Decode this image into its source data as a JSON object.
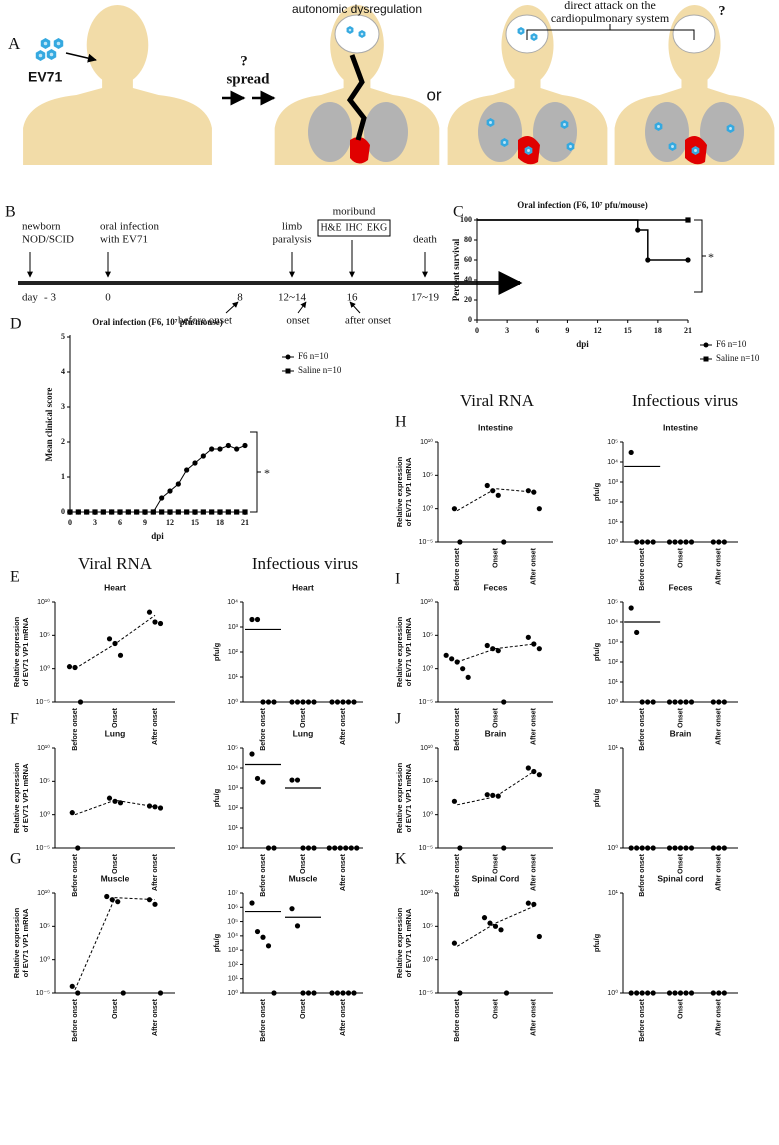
{
  "panel_a": {
    "label": "A",
    "virus": "EV71",
    "question_1": "?",
    "spread": "spread",
    "autonomic": "autonomic  dysregulation",
    "or": "or",
    "direct_attack": [
      "direct attack on the",
      "cardiopulmonary system"
    ],
    "question_2": "?"
  },
  "panel_b": {
    "label": "B",
    "events": [
      [
        "newborn",
        "NOD/SCID"
      ],
      [
        "oral infection",
        "with EV71"
      ],
      [
        "limb",
        "paralysis"
      ],
      [
        "death"
      ]
    ],
    "moribund": "moribund",
    "assays": [
      "H&E",
      "IHC",
      "EKG"
    ],
    "day": "day",
    "days": [
      "- 3",
      "0",
      "8",
      "12~14",
      "16",
      "17~19"
    ],
    "stages": [
      "before onset",
      "onset",
      "after onset"
    ]
  },
  "panel_labels": [
    "C",
    "D",
    "E",
    "F",
    "G",
    "H",
    "I",
    "J",
    "K"
  ],
  "column_headers": {
    "left": [
      "Viral RNA",
      "Infectious virus"
    ],
    "right": [
      "Viral RNA",
      "Infectious virus"
    ]
  },
  "chart_data": [
    {
      "type": "step",
      "title": "Oral infection (F6, 10⁷ pfu/mouse)",
      "xlabel": "dpi",
      "ylabel": "Percent survival",
      "annotation": "*",
      "xlim": [
        0,
        21
      ],
      "xticks": [
        0,
        3,
        6,
        9,
        12,
        15,
        18,
        21
      ],
      "ylim": [
        0,
        100
      ],
      "yticks": [
        0,
        20,
        40,
        60,
        80,
        100
      ],
      "series": [
        {
          "name": "F6  n=10",
          "marker": "circle",
          "color": "#000",
          "x": [
            0,
            16,
            17,
            21
          ],
          "values": [
            100,
            90,
            60,
            60
          ]
        },
        {
          "name": "Saline  n=10",
          "marker": "square",
          "color": "#000",
          "x": [
            0,
            21
          ],
          "values": [
            100,
            100
          ]
        }
      ]
    },
    {
      "type": "line",
      "title": "Oral infection (F6, 10⁷ pfu/mouse)",
      "xlabel": "dpi",
      "ylabel": "Mean clinical score",
      "annotation": "*",
      "xlim": [
        0,
        21
      ],
      "xticks": [
        0,
        3,
        6,
        9,
        12,
        15,
        18,
        21
      ],
      "ylim": [
        0,
        5
      ],
      "yticks": [
        0,
        1,
        2,
        3,
        4,
        5
      ],
      "x": [
        0,
        1,
        2,
        3,
        4,
        5,
        6,
        7,
        8,
        9,
        10,
        11,
        12,
        13,
        14,
        15,
        16,
        17,
        18,
        19,
        20,
        21
      ],
      "series": [
        {
          "name": "F6  n=10",
          "marker": "circle",
          "color": "#000",
          "values": [
            0,
            0,
            0,
            0,
            0,
            0,
            0,
            0,
            0,
            0,
            0,
            0.4,
            0.6,
            0.8,
            1.2,
            1.4,
            1.6,
            1.8,
            1.8,
            1.9,
            1.8,
            1.9
          ]
        },
        {
          "name": "Saline  n=10",
          "marker": "square",
          "color": "#000",
          "values": [
            0,
            0,
            0,
            0,
            0,
            0,
            0,
            0,
            0,
            0,
            0,
            0,
            0,
            0,
            0,
            0,
            0,
            0,
            0,
            0,
            0,
            0
          ]
        }
      ]
    },
    {
      "type": "dot",
      "title": "Heart",
      "ylabel": [
        "Relative expression",
        "of EV71 VP1 mRNA"
      ],
      "log_scale": true,
      "mean_mark": "line",
      "categories": [
        "Before onset",
        "Onset",
        "After onset"
      ],
      "ylim": [
        1e-05,
        10000000000.0
      ],
      "yticks": [
        {
          "value": 10000000000.0,
          "label": "10¹⁰"
        },
        {
          "value": 100000.0,
          "label": "10⁵"
        },
        {
          "value": 1,
          "label": "10⁰"
        },
        {
          "value": 1e-05,
          "label": "10⁻⁵"
        }
      ],
      "groups": [
        [
          2,
          1.5,
          1e-05
        ],
        [
          30000,
          6000,
          100
        ],
        [
          300000000,
          10000000,
          6000000
        ]
      ],
      "means": [
        1,
        5000,
        100000000
      ]
    },
    {
      "type": "dot",
      "title": "Heart",
      "ylabel": "pfu/g",
      "log_scale": true,
      "mean_mark": "bar",
      "categories": [
        "Before onset",
        "Onset",
        "After onset"
      ],
      "ylim": [
        1,
        10000
      ],
      "yticks": [
        {
          "value": 1,
          "label": "10⁰"
        },
        {
          "value": 10,
          "label": "10¹"
        },
        {
          "value": 100,
          "label": "10²"
        },
        {
          "value": 1000,
          "label": "10³"
        },
        {
          "value": 10000,
          "label": "10⁴"
        }
      ],
      "groups": [
        [
          2000,
          2000,
          1,
          1,
          1
        ],
        [
          1,
          1,
          1,
          1,
          1
        ],
        [
          1,
          1,
          1,
          1,
          1
        ]
      ],
      "means": [
        800,
        null,
        null
      ]
    },
    {
      "type": "dot",
      "title": "Lung",
      "ylabel": [
        "Relative expression",
        "of EV71 VP1 mRNA"
      ],
      "log_scale": true,
      "mean_mark": "line",
      "categories": [
        "Before onset",
        "Onset",
        "After onset"
      ],
      "ylim": [
        1e-05,
        10000000000.0
      ],
      "yticks": [
        {
          "value": 10000000000.0,
          "label": "10¹⁰"
        },
        {
          "value": 100000.0,
          "label": "10⁵"
        },
        {
          "value": 1,
          "label": "10⁰"
        },
        {
          "value": 1e-05,
          "label": "10⁻⁵"
        }
      ],
      "groups": [
        [
          2,
          1e-05
        ],
        [
          300,
          100,
          60
        ],
        [
          20,
          15,
          10
        ]
      ],
      "means": [
        1,
        150,
        15
      ]
    },
    {
      "type": "dot",
      "title": "Lung",
      "ylabel": "pfu/g",
      "log_scale": true,
      "mean_mark": "bar",
      "categories": [
        "Before onset",
        "Onset",
        "After onset"
      ],
      "ylim": [
        1,
        100000
      ],
      "yticks": [
        {
          "value": 1,
          "label": "10⁰"
        },
        {
          "value": 10,
          "label": "10¹"
        },
        {
          "value": 100,
          "label": "10²"
        },
        {
          "value": 1000,
          "label": "10³"
        },
        {
          "value": 10000,
          "label": "10⁴"
        },
        {
          "value": 100000,
          "label": "10⁵"
        }
      ],
      "groups": [
        [
          50000,
          3000,
          2000,
          1,
          1
        ],
        [
          2500,
          2500,
          1,
          1,
          1
        ],
        [
          1,
          1,
          1,
          1,
          1,
          1
        ]
      ],
      "means": [
        15000,
        1000,
        null
      ]
    },
    {
      "type": "dot",
      "title": "Muscle",
      "ylabel": [
        "Relative expression",
        "of EV71 VP1 mRNA"
      ],
      "log_scale": true,
      "mean_mark": "line",
      "categories": [
        "Before onset",
        "Onset",
        "After onset"
      ],
      "ylim": [
        1e-05,
        10000000000.0
      ],
      "yticks": [
        {
          "value": 10000000000.0,
          "label": "10¹⁰"
        },
        {
          "value": 100000.0,
          "label": "10⁵"
        },
        {
          "value": 1,
          "label": "10⁰"
        },
        {
          "value": 1e-05,
          "label": "10⁻⁵"
        }
      ],
      "groups": [
        [
          0.0001,
          1e-05
        ],
        [
          3000000000,
          1000000000,
          500000000,
          1e-05
        ],
        [
          1000000000,
          200000000,
          1e-05
        ]
      ],
      "means": [
        3e-05,
        2000000000,
        1000000000
      ]
    },
    {
      "type": "dot",
      "title": "Muscle",
      "ylabel": "pfu/g",
      "log_scale": true,
      "mean_mark": "bar",
      "categories": [
        "Before onset",
        "Onset",
        "After onset"
      ],
      "ylim": [
        1,
        10000000
      ],
      "yticks": [
        {
          "value": 1,
          "label": "10⁰"
        },
        {
          "value": 10,
          "label": "10¹"
        },
        {
          "value": 100,
          "label": "10²"
        },
        {
          "value": 1000,
          "label": "10³"
        },
        {
          "value": 10000,
          "label": "10⁴"
        },
        {
          "value": 100000,
          "label": "10⁵"
        },
        {
          "value": 1000000,
          "label": "10⁶"
        },
        {
          "value": 10000000,
          "label": "10⁷"
        }
      ],
      "groups": [
        [
          2000000,
          20000,
          8000,
          2000,
          1
        ],
        [
          800000,
          50000,
          1,
          1,
          1
        ],
        [
          1,
          1,
          1,
          1,
          1
        ]
      ],
      "means": [
        500000,
        200000,
        null
      ]
    },
    {
      "type": "dot",
      "title": "Intestine",
      "ylabel": [
        "Relative expression",
        "of EV71 VP1 mRNA"
      ],
      "log_scale": true,
      "mean_mark": "line",
      "categories": [
        "Before onset",
        "Onset",
        "After onset"
      ],
      "ylim": [
        1e-05,
        10000000000.0
      ],
      "yticks": [
        {
          "value": 10000000000.0,
          "label": "10¹⁰"
        },
        {
          "value": 100000.0,
          "label": "10⁵"
        },
        {
          "value": 1,
          "label": "10⁰"
        },
        {
          "value": 1e-05,
          "label": "10⁻⁵"
        }
      ],
      "groups": [
        [
          1,
          1e-05
        ],
        [
          3000,
          500,
          100,
          1e-05
        ],
        [
          500,
          300,
          1
        ]
      ],
      "means": [
        0.5,
        1000,
        300
      ]
    },
    {
      "type": "dot",
      "title": "Intestine",
      "ylabel": "pfu/g",
      "log_scale": true,
      "mean_mark": "bar",
      "categories": [
        "Before onset",
        "Onset",
        "After onset"
      ],
      "ylim": [
        1,
        100000
      ],
      "yticks": [
        {
          "value": 1,
          "label": "10⁰"
        },
        {
          "value": 10,
          "label": "10¹"
        },
        {
          "value": 100,
          "label": "10²"
        },
        {
          "value": 1000,
          "label": "10³"
        },
        {
          "value": 10000,
          "label": "10⁴"
        },
        {
          "value": 100000,
          "label": "10⁵"
        }
      ],
      "groups": [
        [
          30000,
          1,
          1,
          1,
          1
        ],
        [
          1,
          1,
          1,
          1,
          1
        ],
        [
          1,
          1,
          1
        ]
      ],
      "means": [
        6000,
        null,
        null
      ]
    },
    {
      "type": "dot",
      "title": "Feces",
      "ylabel": [
        "Relative expression",
        "of EV71 VP1 mRNA"
      ],
      "log_scale": true,
      "mean_mark": "line",
      "categories": [
        "Before onset",
        "Onset",
        "After onset"
      ],
      "ylim": [
        1e-05,
        10000000000.0
      ],
      "yticks": [
        {
          "value": 10000000000.0,
          "label": "10¹⁰"
        },
        {
          "value": 100000.0,
          "label": "10⁵"
        },
        {
          "value": 1,
          "label": "10⁰"
        },
        {
          "value": 1e-05,
          "label": "10⁻⁵"
        }
      ],
      "groups": [
        [
          100,
          30,
          10,
          1,
          0.05
        ],
        [
          3000,
          1000,
          500,
          1e-05
        ],
        [
          50000,
          5000,
          1000
        ]
      ],
      "means": [
        10,
        1000,
        5000
      ]
    },
    {
      "type": "dot",
      "title": "Feces",
      "ylabel": "pfu/g",
      "log_scale": true,
      "mean_mark": "bar",
      "categories": [
        "Before onset",
        "Onset",
        "After onset"
      ],
      "ylim": [
        1,
        100000
      ],
      "yticks": [
        {
          "value": 1,
          "label": "10⁰"
        },
        {
          "value": 10,
          "label": "10¹"
        },
        {
          "value": 100,
          "label": "10²"
        },
        {
          "value": 1000,
          "label": "10³"
        },
        {
          "value": 10000,
          "label": "10⁴"
        },
        {
          "value": 100000,
          "label": "10⁵"
        }
      ],
      "groups": [
        [
          50000,
          3000,
          1,
          1,
          1
        ],
        [
          1,
          1,
          1,
          1,
          1
        ],
        [
          1,
          1,
          1
        ]
      ],
      "means": [
        10000,
        null,
        null
      ]
    },
    {
      "type": "dot",
      "title": "Brain",
      "ylabel": [
        "Relative expression",
        "of EV71 VP1 mRNA"
      ],
      "log_scale": true,
      "mean_mark": "line",
      "categories": [
        "Before onset",
        "Onset",
        "After onset"
      ],
      "ylim": [
        1e-05,
        10000000000.0
      ],
      "yticks": [
        {
          "value": 10000000000.0,
          "label": "10¹⁰"
        },
        {
          "value": 100000.0,
          "label": "10⁵"
        },
        {
          "value": 1,
          "label": "10⁰"
        },
        {
          "value": 1e-05,
          "label": "10⁻⁵"
        }
      ],
      "groups": [
        [
          100,
          1e-05
        ],
        [
          1000,
          800,
          600,
          1e-05
        ],
        [
          10000000,
          3000000,
          1000000
        ]
      ],
      "means": [
        30,
        500,
        3000000
      ]
    },
    {
      "type": "dot",
      "title": "Brain",
      "ylabel": "pfu/g",
      "log_scale": true,
      "mean_mark": "bar",
      "categories": [
        "Before onset",
        "Onset",
        "After onset"
      ],
      "ylim": [
        1,
        10
      ],
      "yticks": [
        {
          "value": 1,
          "label": "10⁰"
        },
        {
          "value": 10,
          "label": "10¹"
        }
      ],
      "groups": [
        [
          1,
          1,
          1,
          1,
          1
        ],
        [
          1,
          1,
          1,
          1,
          1
        ],
        [
          1,
          1,
          1
        ]
      ],
      "means": [
        null,
        null,
        null
      ]
    },
    {
      "type": "dot",
      "title": "Spinal Cord",
      "ylabel": [
        "Relative expression",
        "of EV71 VP1 mRNA"
      ],
      "log_scale": true,
      "mean_mark": "line",
      "categories": [
        "Before onset",
        "Onset",
        "After onset"
      ],
      "ylim": [
        1e-05,
        10000000000.0
      ],
      "yticks": [
        {
          "value": 10000000000.0,
          "label": "10¹⁰"
        },
        {
          "value": 100000.0,
          "label": "10⁵"
        },
        {
          "value": 1,
          "label": "10⁰"
        },
        {
          "value": 1e-05,
          "label": "10⁻⁵"
        }
      ],
      "groups": [
        [
          300,
          1e-05
        ],
        [
          2000000,
          300000,
          100000,
          30000,
          1e-05
        ],
        [
          300000000,
          200000000,
          3000
        ]
      ],
      "means": [
        100,
        300000,
        100000000
      ]
    },
    {
      "type": "dot",
      "title": "Spinal cord",
      "ylabel": "pfu/g",
      "log_scale": true,
      "mean_mark": "bar",
      "categories": [
        "Before onset",
        "Onset",
        "After onset"
      ],
      "ylim": [
        1,
        10
      ],
      "yticks": [
        {
          "value": 1,
          "label": "10⁰"
        },
        {
          "value": 10,
          "label": "10¹"
        }
      ],
      "groups": [
        [
          1,
          1,
          1,
          1,
          1
        ],
        [
          1,
          1,
          1,
          1,
          1
        ],
        [
          1,
          1,
          1
        ]
      ],
      "means": [
        null,
        null,
        null
      ]
    }
  ]
}
